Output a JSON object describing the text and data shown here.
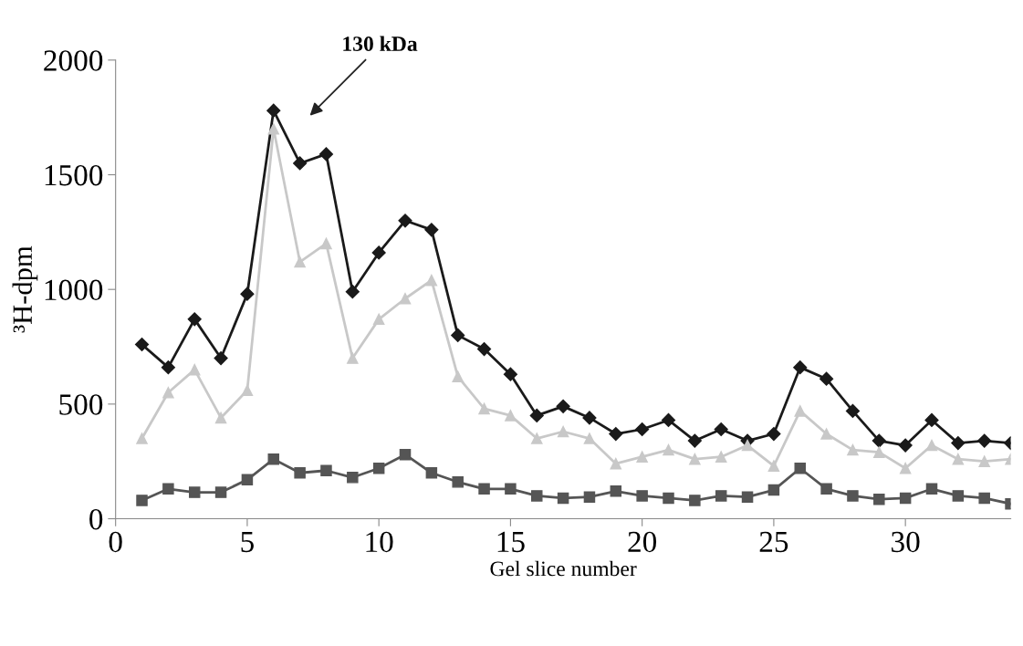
{
  "chart_data": {
    "type": "line",
    "xlabel": "Gel slice number",
    "ylabel": "³H-dpm",
    "x": [
      1,
      2,
      3,
      4,
      5,
      6,
      7,
      8,
      9,
      10,
      11,
      12,
      13,
      14,
      15,
      16,
      17,
      18,
      19,
      20,
      21,
      22,
      23,
      24,
      25,
      26,
      27,
      28,
      29,
      30,
      31,
      32,
      33,
      34
    ],
    "series": [
      {
        "color": "#1a1a1a",
        "marker": "diamond",
        "values": [
          760,
          660,
          870,
          700,
          980,
          1780,
          1550,
          1590,
          990,
          1160,
          1300,
          1260,
          800,
          740,
          630,
          450,
          490,
          440,
          370,
          390,
          430,
          340,
          390,
          340,
          370,
          660,
          610,
          470,
          340,
          320,
          430,
          330,
          340,
          330
        ]
      },
      {
        "color": "#c8c8c8",
        "marker": "triangle",
        "values": [
          350,
          550,
          650,
          440,
          560,
          1700,
          1120,
          1200,
          700,
          870,
          960,
          1040,
          620,
          480,
          450,
          350,
          380,
          350,
          240,
          270,
          300,
          260,
          270,
          320,
          230,
          470,
          370,
          300,
          290,
          220,
          320,
          260,
          250,
          260
        ]
      },
      {
        "color": "#555555",
        "marker": "square",
        "values": [
          80,
          130,
          115,
          115,
          170,
          260,
          200,
          210,
          180,
          220,
          280,
          200,
          160,
          130,
          130,
          100,
          90,
          95,
          120,
          100,
          90,
          80,
          100,
          95,
          125,
          220,
          130,
          100,
          85,
          90,
          130,
          100,
          90,
          65
        ]
      }
    ],
    "xlim": [
      0,
      34
    ],
    "xticks": [
      0,
      5,
      10,
      15,
      20,
      25,
      30
    ],
    "ylim": [
      0,
      2000
    ],
    "yticks": [
      0,
      500,
      1000,
      1500,
      2000
    ],
    "annotations": [
      "130 kDa"
    ],
    "grid": false
  }
}
